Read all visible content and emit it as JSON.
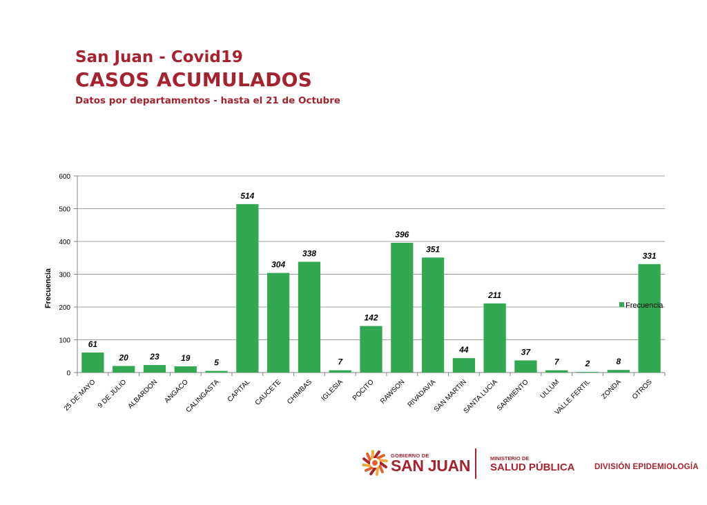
{
  "header": {
    "title": "San Juan - Covid19",
    "heading": "CASOS ACUMULADOS",
    "subtitle": "Datos por departamentos - hasta el 21 de Octubre"
  },
  "chart_data": {
    "type": "bar",
    "ylabel": "Frecuencia",
    "ylim": [
      0,
      600
    ],
    "yticks": [
      0,
      100,
      200,
      300,
      400,
      500,
      600
    ],
    "grid": true,
    "legend_position": "right",
    "colors": {
      "bar": "#33a853",
      "grid": "#a0a0a0",
      "axis": "#808080"
    },
    "categories": [
      "25 DE MAYO",
      "9 DE JULIO",
      "ALBARDON",
      "ANGACO",
      "CALINGASTA",
      "CAPITAL",
      "CAUCETE",
      "CHIMBAS",
      "IGLESIA",
      "POCITO",
      "RAWSON",
      "RIVADAVIA",
      "SAN MARTIN",
      "SANTA LUCIA",
      "SARMIENTO",
      "ULLUM",
      "VALLE FERTIL",
      "ZONDA",
      "OTROS"
    ],
    "series": [
      {
        "name": "Frecuencia",
        "values": [
          61,
          20,
          23,
          19,
          5,
          514,
          304,
          338,
          7,
          142,
          396,
          351,
          44,
          211,
          37,
          7,
          2,
          8,
          331
        ]
      }
    ]
  },
  "footer": {
    "gov_small": "GOBIERNO DE",
    "gov_big": "SAN JUAN",
    "ministry_small": "MINISTERIO DE",
    "ministry_big": "SALUD PÚBLICA",
    "division": "DIVISIÓN EPIDEMIOLOGÍA",
    "brand_color": "#a4232f"
  }
}
